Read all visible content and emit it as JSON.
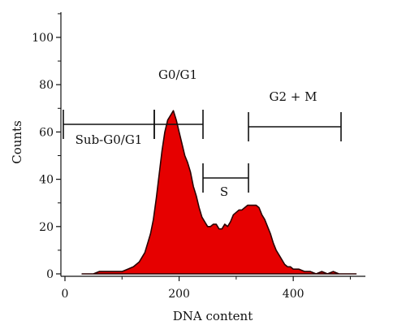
{
  "chart_data": {
    "type": "area",
    "xlabel": "DNA content",
    "ylabel": "Counts",
    "xlim": [
      0,
      530
    ],
    "ylim": [
      0,
      115
    ],
    "x_ticks": [
      0,
      200,
      400
    ],
    "y_ticks": [
      0,
      20,
      40,
      60,
      80,
      100
    ],
    "x_tick_labels": [
      "0",
      "200",
      "400"
    ],
    "y_tick_labels": [
      "0",
      "20",
      "40",
      "60",
      "80",
      "100"
    ],
    "grid": false,
    "fill_color": "#e60000",
    "series": [
      {
        "x": [
          30,
          40,
          50,
          60,
          70,
          80,
          90,
          100,
          110,
          120,
          130,
          140,
          145,
          150,
          155,
          160,
          165,
          170,
          175,
          180,
          185,
          190,
          195,
          200,
          205,
          210,
          215,
          220,
          225,
          230,
          235,
          240,
          245,
          250,
          255,
          260,
          265,
          270,
          275,
          280,
          285,
          290,
          295,
          300,
          305,
          310,
          315,
          320,
          325,
          330,
          335,
          340,
          345,
          350,
          355,
          360,
          365,
          370,
          375,
          380,
          385,
          390,
          395,
          400,
          410,
          420,
          430,
          440,
          450,
          460,
          470,
          480,
          490,
          500,
          510
        ],
        "y": [
          0,
          0,
          0,
          1,
          1,
          1,
          1,
          1,
          2,
          3,
          5,
          9,
          13,
          17,
          23,
          32,
          42,
          52,
          60,
          65,
          67,
          69,
          65,
          60,
          55,
          50,
          47,
          43,
          37,
          33,
          28,
          24,
          22,
          20,
          20,
          21,
          21,
          19,
          19,
          21,
          20,
          22,
          25,
          26,
          27,
          27,
          28,
          29,
          29,
          29,
          29,
          28,
          25,
          23,
          20,
          17,
          13,
          10,
          8,
          6,
          4,
          3,
          3,
          2,
          2,
          1,
          1,
          0,
          1,
          0,
          1,
          0,
          0,
          0,
          0
        ]
      }
    ],
    "gates": [
      {
        "label": "Sub-G0/G1",
        "x": [
          0,
          155
        ],
        "y": 63
      },
      {
        "label": "G0/G1",
        "x": [
          155,
          240
        ],
        "y": 63
      },
      {
        "label": "S",
        "x": [
          240,
          320
        ],
        "y": 49
      },
      {
        "label": "G2 + M",
        "x": [
          320,
          485
        ],
        "y": 63
      }
    ]
  }
}
